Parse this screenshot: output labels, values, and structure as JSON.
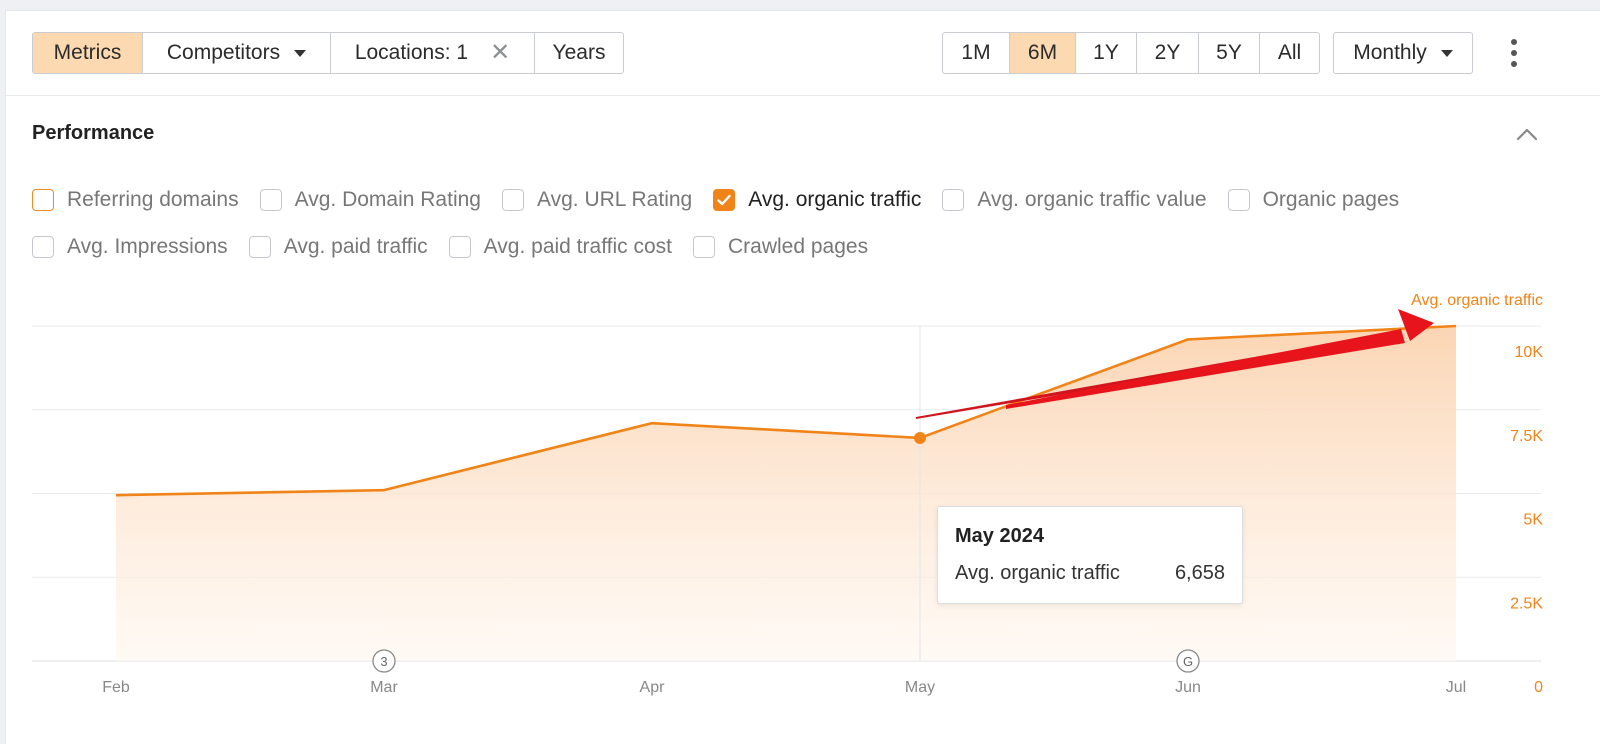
{
  "toolbar": {
    "left_group": [
      {
        "label": "Metrics",
        "active": true
      },
      {
        "label": "Competitors",
        "dropdown": true
      },
      {
        "label": "Locations: 1",
        "clearable": true
      },
      {
        "label": "Years"
      }
    ],
    "ranges": [
      {
        "label": "1M"
      },
      {
        "label": "6M",
        "active": true
      },
      {
        "label": "1Y"
      },
      {
        "label": "2Y"
      },
      {
        "label": "5Y"
      },
      {
        "label": "All"
      }
    ],
    "granularity": "Monthly"
  },
  "section": {
    "title": "Performance"
  },
  "metrics": [
    {
      "label": "Referring domains",
      "checked": false,
      "accent_border": true
    },
    {
      "label": "Avg. Domain Rating",
      "checked": false
    },
    {
      "label": "Avg. URL Rating",
      "checked": false
    },
    {
      "label": "Avg. organic traffic",
      "checked": true
    },
    {
      "label": "Avg. organic traffic value",
      "checked": false
    },
    {
      "label": "Organic pages",
      "checked": false
    },
    {
      "label": "Avg. Impressions",
      "checked": false
    },
    {
      "label": "Avg. paid traffic",
      "checked": false
    },
    {
      "label": "Avg. paid traffic cost",
      "checked": false
    },
    {
      "label": "Crawled pages",
      "checked": false
    }
  ],
  "colors": {
    "accent": "#f08419",
    "accent_light": "#fdd9b2",
    "arrow": "#e8141b"
  },
  "chart_data": {
    "type": "area",
    "series": [
      {
        "name": "Avg. organic traffic",
        "values": [
          4950,
          5100,
          7100,
          6658,
          9600,
          10000
        ]
      }
    ],
    "x": [
      "Feb",
      "Mar",
      "Apr",
      "May",
      "Jun",
      "Jul"
    ],
    "y_ticks": [
      "10K",
      "7.5K",
      "5K",
      "2.5K",
      "0"
    ],
    "ylim": [
      0,
      10000
    ],
    "y_axis_side": "right",
    "grid": true,
    "annotations": [
      {
        "x": "Mar",
        "label": "3"
      },
      {
        "x": "Jun",
        "label": "G"
      }
    ],
    "tooltip": {
      "title": "May 2024",
      "label": "Avg. organic traffic",
      "value": "6,658"
    }
  }
}
